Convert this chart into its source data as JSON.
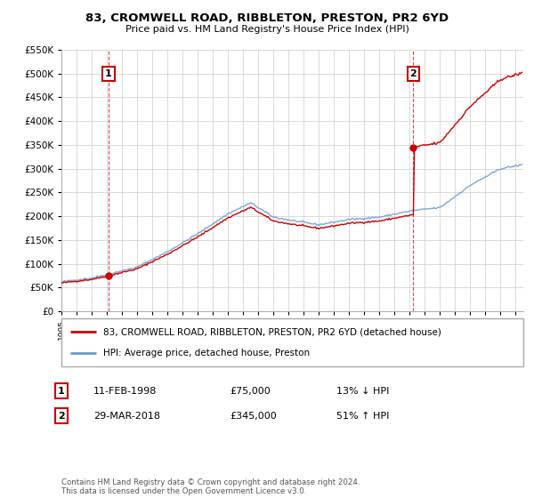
{
  "title": "83, CROMWELL ROAD, RIBBLETON, PRESTON, PR2 6YD",
  "subtitle": "Price paid vs. HM Land Registry's House Price Index (HPI)",
  "ylim": [
    0,
    550000
  ],
  "yticks": [
    0,
    50000,
    100000,
    150000,
    200000,
    250000,
    300000,
    350000,
    400000,
    450000,
    500000,
    550000
  ],
  "x_start_year": 1995,
  "x_end_year": 2025,
  "sale1": {
    "date_num": 1998.11,
    "price": 75000,
    "label": "1",
    "date_str": "11-FEB-1998",
    "pct": "13%",
    "dir": "↓"
  },
  "sale2": {
    "date_num": 2018.24,
    "price": 345000,
    "label": "2",
    "date_str": "29-MAR-2018",
    "pct": "51%",
    "dir": "↑"
  },
  "legend_label_red": "83, CROMWELL ROAD, RIBBLETON, PRESTON, PR2 6YD (detached house)",
  "legend_label_blue": "HPI: Average price, detached house, Preston",
  "footer": "Contains HM Land Registry data © Crown copyright and database right 2024.\nThis data is licensed under the Open Government Licence v3.0.",
  "red_color": "#cc0000",
  "blue_color": "#6699cc",
  "dashed_color": "#cc0000",
  "background_color": "#ffffff",
  "grid_color": "#cccccc",
  "hpi_anchors_years": [
    1995,
    1997,
    1998.11,
    2000,
    2002,
    2004,
    2006,
    2007.5,
    2009,
    2010,
    2012,
    2014,
    2016,
    2018.24,
    2020,
    2022,
    2024,
    2025.4
  ],
  "hpi_anchors_prices": [
    62000,
    70000,
    78000,
    93000,
    125000,
    163000,
    205000,
    228000,
    198000,
    192000,
    182000,
    193000,
    198000,
    212000,
    218000,
    265000,
    300000,
    308000
  ]
}
